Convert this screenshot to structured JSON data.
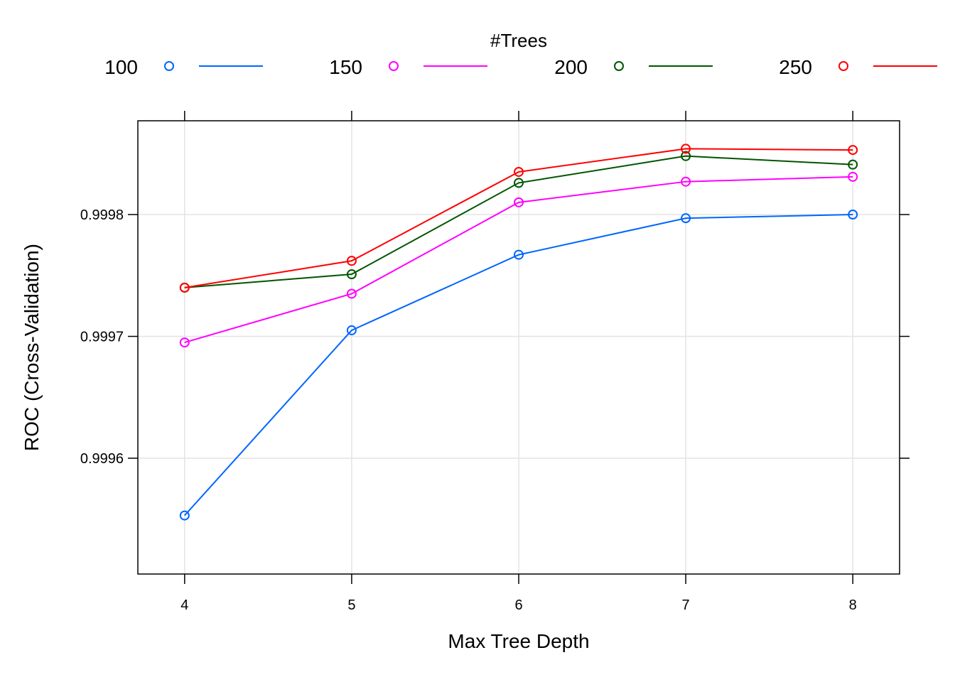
{
  "chart_data": {
    "type": "line",
    "title": "",
    "xlabel": "Max Tree Depth",
    "ylabel": "ROC (Cross-Validation)",
    "legend_title": "#Trees",
    "legend_position": "top",
    "x": [
      4,
      5,
      6,
      7,
      8
    ],
    "x_ticks": [
      "4",
      "5",
      "6",
      "7",
      "8"
    ],
    "xlim": [
      3.72,
      8.28
    ],
    "y_ticks": [
      0.9996,
      0.9997,
      0.9998
    ],
    "y_tick_labels": [
      "0.9996",
      "0.9997",
      "0.9998"
    ],
    "ylim": [
      0.99995,
      0.99999
    ],
    "grid": true,
    "series": [
      {
        "name": "100",
        "color": "#0066ff",
        "values": [
          0.999553,
          0.999705,
          0.999767,
          0.999797,
          0.9998
        ]
      },
      {
        "name": "150",
        "color": "#ff00ff",
        "values": [
          0.999695,
          0.999735,
          0.99981,
          0.999827,
          0.999831
        ]
      },
      {
        "name": "200",
        "color": "#005500",
        "values": [
          0.99974,
          0.999751,
          0.999826,
          0.999848,
          0.999841
        ]
      },
      {
        "name": "250",
        "color": "#ff0000",
        "values": [
          0.99974,
          0.999762,
          0.999835,
          0.999854,
          0.999853
        ]
      }
    ]
  }
}
